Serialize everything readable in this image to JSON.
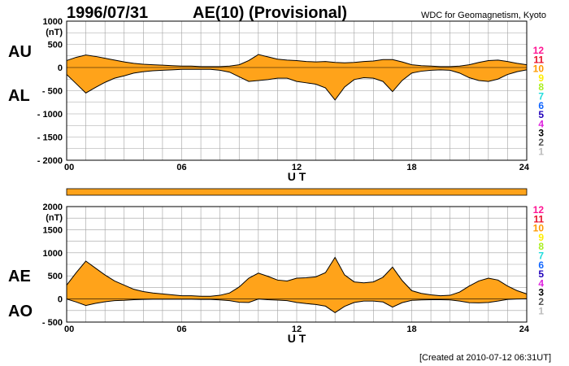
{
  "header": {
    "date": "1996/07/31",
    "title": "AE(10) (Provisional)",
    "organization": "WDC for Geomagnetism, Kyoto"
  },
  "footer": {
    "created": "[Created at 2010-07-12 06:31UT]"
  },
  "colors": {
    "fill": "#ffa31a",
    "line": "#000000",
    "grid": "#a0a0a0"
  },
  "legend": [
    {
      "label": "12",
      "color": "#ff1493"
    },
    {
      "label": "11",
      "color": "#e8102c"
    },
    {
      "label": "10",
      "color": "#ff9900"
    },
    {
      "label": "9",
      "color": "#ffee00"
    },
    {
      "label": "8",
      "color": "#aaee22"
    },
    {
      "label": "7",
      "color": "#22dddd"
    },
    {
      "label": "6",
      "color": "#1166ff"
    },
    {
      "label": "5",
      "color": "#2200bb"
    },
    {
      "label": "4",
      "color": "#dd22dd"
    },
    {
      "label": "3",
      "color": "#000000"
    },
    {
      "label": "2",
      "color": "#555555"
    },
    {
      "label": "1",
      "color": "#bbbbbb"
    }
  ],
  "chart_data": [
    {
      "type": "area",
      "panel_labels": [
        "AU",
        "AL"
      ],
      "unit": "(nT)",
      "xlabel": "U T",
      "xlim": [
        0,
        24
      ],
      "ylim": [
        -2000,
        1000
      ],
      "x_ticks": [
        "00",
        "06",
        "12",
        "18",
        "24"
      ],
      "y_ticks": [
        "1000",
        "500",
        "0",
        "- 500",
        "- 1000",
        "- 1500",
        "- 2000"
      ],
      "grid": true,
      "series": [
        {
          "name": "AU",
          "x": [
            0,
            0.5,
            1,
            1.5,
            2,
            2.5,
            3,
            3.5,
            4,
            4.5,
            5,
            5.5,
            6,
            6.5,
            7,
            7.5,
            8,
            8.5,
            9,
            9.5,
            10,
            10.5,
            11,
            11.5,
            12,
            12.5,
            13,
            13.5,
            14,
            14.5,
            15,
            15.5,
            16,
            16.5,
            17,
            17.5,
            18,
            18.5,
            19,
            19.5,
            20,
            20.5,
            21,
            21.5,
            22,
            22.5,
            23,
            23.5,
            24
          ],
          "values": [
            150,
            220,
            270,
            240,
            200,
            160,
            120,
            90,
            70,
            60,
            50,
            40,
            30,
            30,
            20,
            20,
            20,
            30,
            60,
            150,
            280,
            230,
            180,
            160,
            150,
            130,
            120,
            130,
            110,
            100,
            110,
            130,
            140,
            170,
            170,
            120,
            60,
            40,
            30,
            20,
            20,
            30,
            60,
            110,
            150,
            160,
            130,
            90,
            60
          ]
        },
        {
          "name": "AL",
          "x": [
            0,
            0.5,
            1,
            1.5,
            2,
            2.5,
            3,
            3.5,
            4,
            4.5,
            5,
            5.5,
            6,
            6.5,
            7,
            7.5,
            8,
            8.5,
            9,
            9.5,
            10,
            10.5,
            11,
            11.5,
            12,
            12.5,
            13,
            13.5,
            14,
            14.5,
            15,
            15.5,
            16,
            16.5,
            17,
            17.5,
            18,
            18.5,
            19,
            19.5,
            20,
            20.5,
            21,
            21.5,
            22,
            22.5,
            23,
            23.5,
            24
          ],
          "values": [
            -150,
            -350,
            -550,
            -430,
            -320,
            -230,
            -180,
            -120,
            -90,
            -70,
            -60,
            -50,
            -40,
            -40,
            -40,
            -40,
            -60,
            -100,
            -200,
            -300,
            -280,
            -260,
            -230,
            -230,
            -300,
            -330,
            -360,
            -440,
            -700,
            -420,
            -260,
            -220,
            -230,
            -300,
            -520,
            -280,
            -120,
            -80,
            -60,
            -50,
            -60,
            -120,
            -220,
            -280,
            -300,
            -250,
            -150,
            -90,
            -50
          ]
        }
      ]
    },
    {
      "type": "area",
      "panel_labels": [
        "AE",
        "AO"
      ],
      "unit": "(nT)",
      "xlabel": "U T",
      "xlim": [
        0,
        24
      ],
      "ylim": [
        -500,
        2000
      ],
      "x_ticks": [
        "00",
        "06",
        "12",
        "18",
        "24"
      ],
      "y_ticks": [
        "2000",
        "1500",
        "1000",
        "500",
        "0",
        "- 500"
      ],
      "grid": true,
      "series": [
        {
          "name": "AE",
          "x": [
            0,
            0.5,
            1,
            1.5,
            2,
            2.5,
            3,
            3.5,
            4,
            4.5,
            5,
            5.5,
            6,
            6.5,
            7,
            7.5,
            8,
            8.5,
            9,
            9.5,
            10,
            10.5,
            11,
            11.5,
            12,
            12.5,
            13,
            13.5,
            14,
            14.5,
            15,
            15.5,
            16,
            16.5,
            17,
            17.5,
            18,
            18.5,
            19,
            19.5,
            20,
            20.5,
            21,
            21.5,
            22,
            22.5,
            23,
            23.5,
            24
          ],
          "values": [
            300,
            570,
            820,
            670,
            520,
            390,
            300,
            210,
            160,
            130,
            110,
            90,
            70,
            70,
            60,
            60,
            80,
            130,
            260,
            450,
            560,
            490,
            410,
            390,
            450,
            460,
            480,
            570,
            900,
            520,
            370,
            350,
            370,
            470,
            690,
            400,
            180,
            120,
            90,
            70,
            80,
            150,
            280,
            390,
            450,
            410,
            280,
            180,
            110
          ]
        },
        {
          "name": "AO",
          "x": [
            0,
            0.5,
            1,
            1.5,
            2,
            2.5,
            3,
            3.5,
            4,
            4.5,
            5,
            5.5,
            6,
            6.5,
            7,
            7.5,
            8,
            8.5,
            9,
            9.5,
            10,
            10.5,
            11,
            11.5,
            12,
            12.5,
            13,
            13.5,
            14,
            14.5,
            15,
            15.5,
            16,
            16.5,
            17,
            17.5,
            18,
            18.5,
            19,
            19.5,
            20,
            20.5,
            21,
            21.5,
            22,
            22.5,
            23,
            23.5,
            24
          ],
          "values": [
            0,
            -65,
            -140,
            -95,
            -60,
            -35,
            -30,
            -15,
            -10,
            -5,
            -5,
            -5,
            -5,
            -5,
            -10,
            -10,
            -20,
            -35,
            -70,
            -75,
            0,
            -15,
            -25,
            -35,
            -75,
            -100,
            -120,
            -155,
            -295,
            -160,
            -75,
            -45,
            -45,
            -65,
            -175,
            -80,
            -30,
            -20,
            -15,
            -15,
            -20,
            -45,
            -80,
            -85,
            -75,
            -45,
            -10,
            0,
            5
          ]
        }
      ]
    }
  ]
}
